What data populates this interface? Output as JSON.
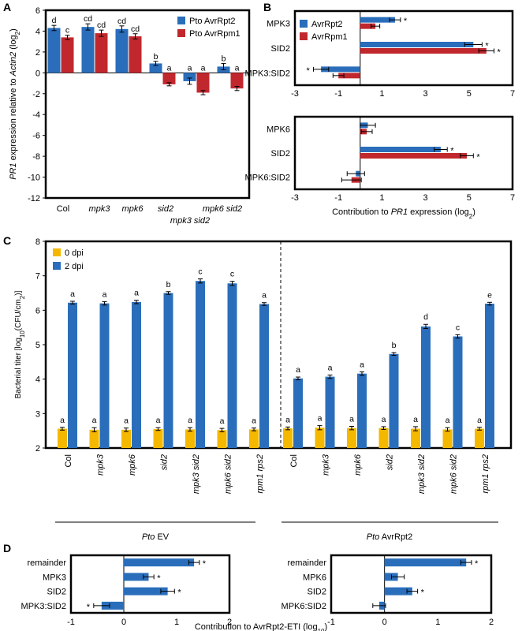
{
  "colors": {
    "blue": "#2a6ebb",
    "red": "#c0282e",
    "gold": "#f5b800",
    "errorbar": "#000000"
  },
  "panels": {
    "A": "A",
    "B": "B",
    "C": "C",
    "D": "D"
  },
  "chart_data": [
    {
      "id": "A",
      "type": "bar",
      "ylabel_parts": [
        "",
        "PR1",
        " expression relative to ",
        "Actin2",
        " (log",
        "2",
        ")"
      ],
      "ylim": [
        -12,
        6
      ],
      "yticks": [
        6,
        4,
        2,
        0,
        -2,
        -4,
        -6,
        -8,
        -10,
        -12
      ],
      "categories": [
        "Col",
        "mpk3",
        "mpk6",
        "sid2",
        "mpk3 sid2",
        "mpk6 sid2"
      ],
      "series": [
        {
          "name": "Pto AvrRpt2",
          "color": "#2a6ebb",
          "values": [
            4.3,
            4.4,
            4.2,
            0.9,
            -0.8,
            0.6
          ],
          "err": [
            0.25,
            0.3,
            0.3,
            0.2,
            0.3,
            0.3
          ],
          "letters": [
            "d",
            "cd",
            "cd",
            "b",
            "a",
            "b"
          ]
        },
        {
          "name": "Pto AvrRpm1",
          "color": "#c0282e",
          "values": [
            3.4,
            3.8,
            3.5,
            -1.1,
            -1.9,
            -1.5
          ],
          "err": [
            0.2,
            0.3,
            0.25,
            0.15,
            0.2,
            0.2
          ],
          "letters": [
            "c",
            "cd",
            "cd",
            "a",
            "a",
            "a"
          ]
        }
      ]
    },
    {
      "id": "B1",
      "type": "bar",
      "orientation": "horizontal",
      "xlim": [
        -3,
        7
      ],
      "xticks": [
        -3,
        -1,
        1,
        3,
        5,
        7
      ],
      "categories": [
        "MPK3",
        "SID2",
        "MPK3:SID2"
      ],
      "series": [
        {
          "name": "AvrRpt2",
          "color": "#2a6ebb",
          "values": [
            1.6,
            5.2,
            -1.8
          ],
          "err": [
            0.25,
            0.4,
            0.35
          ],
          "stars": [
            "*",
            "*",
            "*"
          ]
        },
        {
          "name": "AvrRpm1",
          "color": "#c0282e",
          "values": [
            0.7,
            5.8,
            -1.0
          ],
          "err": [
            0.2,
            0.35,
            0.25
          ],
          "stars": [
            "",
            "*",
            ""
          ]
        }
      ]
    },
    {
      "id": "B2",
      "type": "bar",
      "orientation": "horizontal",
      "xlim": [
        -3,
        7
      ],
      "xticks": [
        -3,
        -1,
        1,
        3,
        5,
        7
      ],
      "xlabel_parts": [
        "Contribution to ",
        "PR1",
        " expression (log",
        "2",
        ")"
      ],
      "categories": [
        "MPK6",
        "SID2",
        "MPK6:SID2"
      ],
      "series": [
        {
          "name": "AvrRpt2",
          "color": "#2a6ebb",
          "values": [
            0.35,
            3.7,
            -0.2
          ],
          "err": [
            0.35,
            0.3,
            0.4
          ],
          "stars": [
            "",
            "*",
            ""
          ]
        },
        {
          "name": "AvrRpm1",
          "color": "#c0282e",
          "values": [
            0.3,
            4.9,
            -0.4
          ],
          "err": [
            0.25,
            0.3,
            0.45
          ],
          "stars": [
            "",
            "*",
            ""
          ]
        }
      ]
    },
    {
      "id": "C",
      "type": "bar",
      "ylabel": "Bacterial titer [log10(CFU/cm2)]",
      "ylabel_parts": [
        "Bacterial titer [log",
        "10",
        "(CFU/cm",
        "2",
        ")]"
      ],
      "ylim": [
        2,
        8
      ],
      "yticks": [
        2,
        3,
        4,
        5,
        6,
        7,
        8
      ],
      "categories": [
        "Col",
        "mpk3",
        "mpk6",
        "sid2",
        "mpk3 sid2",
        "mpk6 sid2",
        "rpm1 rps2",
        "Col",
        "mpk3",
        "mpk6",
        "sid2",
        "mpk3 sid2",
        "mpk6 sid2",
        "rpm1 rps2"
      ],
      "groups": [
        "Pto EV",
        "Pto AvrRpt2"
      ],
      "group_label_parts": [
        [
          "Pto",
          " EV"
        ],
        [
          "Pto",
          " AvrRpt2"
        ]
      ],
      "series": [
        {
          "name": "0 dpi",
          "color": "#f5b800",
          "values": [
            2.56,
            2.53,
            2.53,
            2.55,
            2.54,
            2.52,
            2.54,
            2.57,
            2.59,
            2.58,
            2.58,
            2.56,
            2.54,
            2.56
          ],
          "err": [
            0.04,
            0.06,
            0.05,
            0.04,
            0.05,
            0.05,
            0.04,
            0.04,
            0.06,
            0.05,
            0.04,
            0.06,
            0.05,
            0.04
          ],
          "letters": [
            "a",
            "a",
            "a",
            "a",
            "a",
            "a",
            "a",
            "a",
            "a",
            "a",
            "a",
            "a",
            "a",
            "a"
          ]
        },
        {
          "name": "2 dpi",
          "color": "#2a6ebb",
          "values": [
            6.22,
            6.2,
            6.24,
            6.5,
            6.85,
            6.78,
            6.18,
            4.02,
            4.07,
            4.16,
            4.73,
            5.53,
            5.24,
            6.19
          ],
          "err": [
            0.04,
            0.05,
            0.05,
            0.04,
            0.06,
            0.06,
            0.04,
            0.04,
            0.05,
            0.05,
            0.04,
            0.06,
            0.05,
            0.04
          ],
          "letters": [
            "a",
            "a",
            "a",
            "b",
            "c",
            "c",
            "a",
            "a",
            "a",
            "a",
            "b",
            "d",
            "c",
            "e"
          ]
        }
      ]
    },
    {
      "id": "D1",
      "type": "bar",
      "orientation": "horizontal",
      "xlim": [
        -1,
        2
      ],
      "xticks": [
        -1,
        0,
        1,
        2
      ],
      "categories": [
        "remainder",
        "MPK3",
        "SID2",
        "MPK3:SID2"
      ],
      "series": [
        {
          "name": "",
          "color": "#2a6ebb",
          "values": [
            1.33,
            0.47,
            0.83,
            -0.42
          ],
          "err": [
            0.1,
            0.1,
            0.13,
            0.15
          ],
          "stars": [
            "*",
            "*",
            "*",
            "*"
          ]
        }
      ]
    },
    {
      "id": "D2",
      "type": "bar",
      "orientation": "horizontal",
      "xlim": [
        -1,
        2
      ],
      "xticks": [
        -1,
        0,
        1,
        2
      ],
      "categories": [
        "remainder",
        "MPK6",
        "SID2",
        "MPK6:SID2"
      ],
      "series": [
        {
          "name": "",
          "color": "#2a6ebb",
          "values": [
            1.53,
            0.25,
            0.52,
            -0.1
          ],
          "err": [
            0.1,
            0.12,
            0.1,
            0.12
          ],
          "stars": [
            "*",
            "",
            "*",
            ""
          ]
        }
      ]
    }
  ],
  "d_xlabel_parts": [
    "Contribution to AvrRpt2-ETI (log",
    "10",
    ")"
  ]
}
